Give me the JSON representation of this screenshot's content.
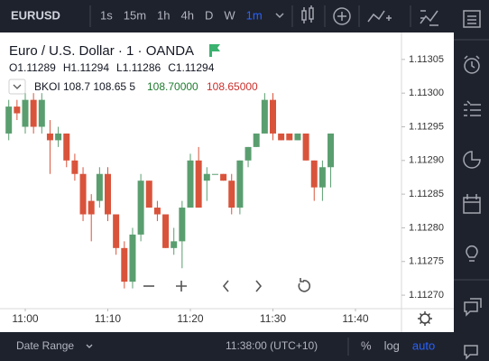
{
  "toolbar": {
    "symbol": "EURUSD",
    "intervals": [
      "1s",
      "15m",
      "1h",
      "4h",
      "D",
      "W",
      "1m"
    ],
    "active": 6
  },
  "chart_data": {
    "type": "candlestick",
    "title": "Euro / U.S. Dollar · 1 · OANDA",
    "x": [
      "10:58",
      "10:59",
      "11:00",
      "11:01",
      "11:02",
      "11:03",
      "11:04",
      "11:05",
      "11:06",
      "11:07",
      "11:08",
      "11:09",
      "11:10",
      "11:11",
      "11:12",
      "11:13",
      "11:14",
      "11:15",
      "11:16",
      "11:17",
      "11:18",
      "11:19",
      "11:20",
      "11:21",
      "11:22",
      "11:23",
      "11:24",
      "11:25",
      "11:26",
      "11:27",
      "11:28",
      "11:29",
      "11:30",
      "11:31",
      "11:32",
      "11:33",
      "11:34",
      "11:35",
      "11:36",
      "11:37"
    ],
    "open": [
      1.11294,
      1.11298,
      1.11295,
      1.11299,
      1.11295,
      1.11294,
      1.11293,
      1.11294,
      1.1129,
      1.11288,
      1.11284,
      1.11284,
      1.11288,
      1.11282,
      1.11277,
      1.11272,
      1.11279,
      1.11287,
      1.11283,
      1.11282,
      1.11277,
      1.11278,
      1.11283,
      1.1129,
      1.11287,
      1.11288,
      1.11288,
      1.11287,
      1.11283,
      1.1129,
      1.11292,
      1.11294,
      1.11299,
      1.11294,
      1.11294,
      1.11293,
      1.11294,
      1.1129,
      1.11286,
      1.11289
    ],
    "high": [
      1.11299,
      1.11299,
      1.113,
      1.113,
      1.113,
      1.11296,
      1.11295,
      1.11294,
      1.11291,
      1.11289,
      1.11285,
      1.11289,
      1.11289,
      1.11282,
      1.11278,
      1.1128,
      1.11288,
      1.11287,
      1.11284,
      1.11282,
      1.1128,
      1.11284,
      1.11291,
      1.11292,
      1.11289,
      1.11288,
      1.11288,
      1.11288,
      1.1129,
      1.11292,
      1.11294,
      1.113,
      1.113,
      1.11294,
      1.11294,
      1.11294,
      1.11294,
      1.1129,
      1.1129,
      1.11294
    ],
    "low": [
      1.11293,
      1.11296,
      1.11294,
      1.11294,
      1.11294,
      1.11288,
      1.11292,
      1.11289,
      1.11287,
      1.11281,
      1.11278,
      1.11283,
      1.11281,
      1.11276,
      1.11271,
      1.11271,
      1.11278,
      1.11283,
      1.11281,
      1.11277,
      1.11276,
      1.11274,
      1.11283,
      1.11283,
      1.11284,
      1.11288,
      1.11287,
      1.11282,
      1.11282,
      1.11289,
      1.11292,
      1.11294,
      1.11293,
      1.11293,
      1.11293,
      1.11293,
      1.1129,
      1.11284,
      1.11284,
      1.11286
    ],
    "close": [
      1.11298,
      1.11297,
      1.11299,
      1.11295,
      1.11299,
      1.11293,
      1.11294,
      1.1129,
      1.11288,
      1.11282,
      1.11282,
      1.11288,
      1.11282,
      1.11277,
      1.11272,
      1.11279,
      1.11287,
      1.11283,
      1.11282,
      1.11277,
      1.11278,
      1.11283,
      1.1129,
      1.11283,
      1.11288,
      1.11288,
      1.11287,
      1.11283,
      1.1129,
      1.11292,
      1.11294,
      1.11299,
      1.11294,
      1.11293,
      1.11293,
      1.11294,
      1.1129,
      1.11286,
      1.11289,
      1.11294
    ],
    "up_color": "#5a9e6f",
    "down_color": "#d9533b",
    "ylim": [
      1.11268,
      1.11309
    ],
    "yticks": [
      1.11305,
      {
        "value": 1.113,
        "label": "1.11300"
      },
      1.11295,
      {
        "value": 1.1129,
        "label": "1.11290"
      },
      1.11285,
      {
        "value": 1.1128,
        "label": "1.11280"
      },
      1.11275,
      {
        "value": 1.1127,
        "label": "1.11270"
      }
    ],
    "xticks": [
      "11:00",
      "11:10",
      "11:20",
      "11:30",
      "11:40"
    ],
    "legend": {
      "labels": [
        "O",
        "H",
        "L",
        "C"
      ],
      "values": [
        1.11289,
        1.11294,
        1.11286,
        1.11294
      ]
    },
    "indicator": {
      "text": "BKOI 108.7 108.65 5",
      "values": [
        "108.70000",
        "108.65000"
      ],
      "colors": [
        "#1e7b2e",
        "#c9302c"
      ]
    }
  },
  "bottom_bar": {
    "date_range": "Date Range",
    "time": "11:38:00 (UTC+10)",
    "options": [
      "%",
      "log",
      "auto"
    ]
  }
}
